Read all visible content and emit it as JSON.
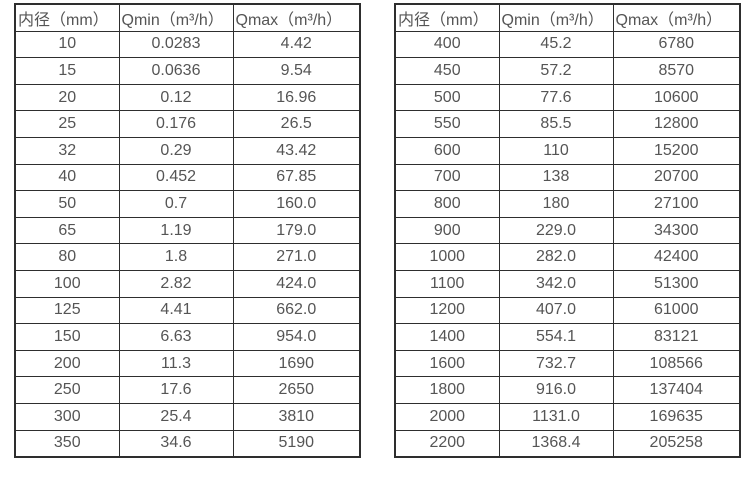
{
  "colors": {
    "background": "#ffffff",
    "border": "#2e2e2e",
    "text": "#555555"
  },
  "tables": [
    {
      "name": "flow-range-table-dn10-350",
      "headers": [
        "内径（mm）",
        "Qmin（m³/h）",
        "Qmax（m³/h）"
      ],
      "rows": [
        [
          "10",
          "0.0283",
          "4.42"
        ],
        [
          "15",
          "0.0636",
          "9.54"
        ],
        [
          "20",
          "0.12",
          "16.96"
        ],
        [
          "25",
          "0.176",
          "26.5"
        ],
        [
          "32",
          "0.29",
          "43.42"
        ],
        [
          "40",
          "0.452",
          "67.85"
        ],
        [
          "50",
          "0.7",
          "160.0"
        ],
        [
          "65",
          "1.19",
          "179.0"
        ],
        [
          "80",
          "1.8",
          "271.0"
        ],
        [
          "100",
          "2.82",
          "424.0"
        ],
        [
          "125",
          "4.41",
          "662.0"
        ],
        [
          "150",
          "6.63",
          "954.0"
        ],
        [
          "200",
          "11.3",
          "1690"
        ],
        [
          "250",
          "17.6",
          "2650"
        ],
        [
          "300",
          "25.4",
          "3810"
        ],
        [
          "350",
          "34.6",
          "5190"
        ]
      ]
    },
    {
      "name": "flow-range-table-dn400-2200",
      "headers": [
        "内径（mm）",
        "Qmin（m³/h）",
        "Qmax（m³/h）"
      ],
      "rows": [
        [
          "400",
          "45.2",
          "6780"
        ],
        [
          "450",
          "57.2",
          "8570"
        ],
        [
          "500",
          "77.6",
          "10600"
        ],
        [
          "550",
          "85.5",
          "12800"
        ],
        [
          "600",
          "110",
          "15200"
        ],
        [
          "700",
          "138",
          "20700"
        ],
        [
          "800",
          "180",
          "27100"
        ],
        [
          "900",
          "229.0",
          "34300"
        ],
        [
          "1000",
          "282.0",
          "42400"
        ],
        [
          "1100",
          "342.0",
          "51300"
        ],
        [
          "1200",
          "407.0",
          "61000"
        ],
        [
          "1400",
          "554.1",
          "83121"
        ],
        [
          "1600",
          "732.7",
          "108566"
        ],
        [
          "1800",
          "916.0",
          "137404"
        ],
        [
          "2000",
          "1131.0",
          "169635"
        ],
        [
          "2200",
          "1368.4",
          "205258"
        ]
      ]
    }
  ]
}
